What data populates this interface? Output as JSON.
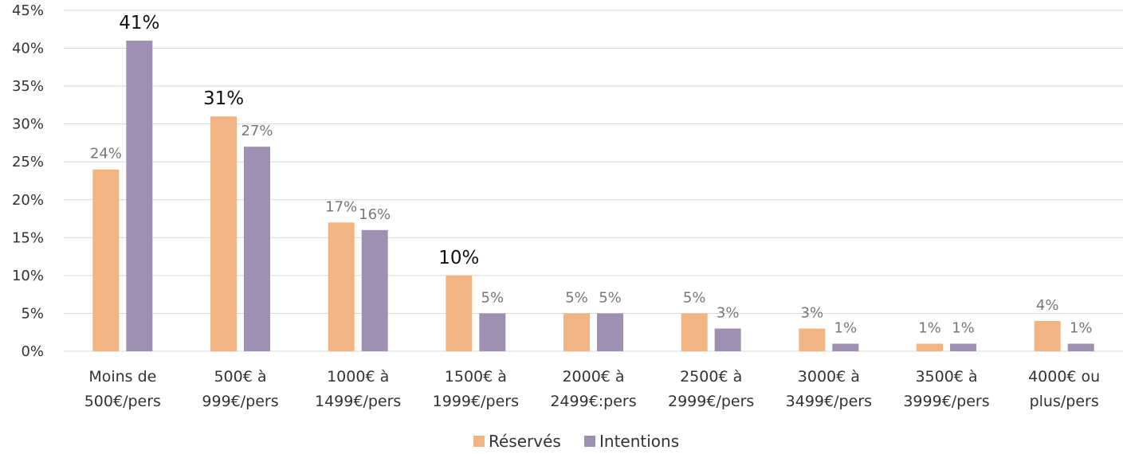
{
  "chart_data": {
    "type": "bar",
    "categories": [
      [
        "Moins de",
        "500€/pers"
      ],
      [
        "500€ à",
        "999€/pers"
      ],
      [
        "1000€ à",
        "1499€/pers"
      ],
      [
        "1500€ à",
        "1999€/pers"
      ],
      [
        "2000€ à",
        "2499€:pers"
      ],
      [
        "2500€ à",
        "2999€/pers"
      ],
      [
        "3000€ à",
        "3499€/pers"
      ],
      [
        "3500€ à",
        "3999€/pers"
      ],
      [
        "4000€ ou",
        "plus/pers"
      ]
    ],
    "series": [
      {
        "name": "Réservés",
        "color": "#f2b482",
        "values": [
          24,
          31,
          17,
          10,
          5,
          5,
          3,
          1,
          4
        ],
        "labels": [
          "24%",
          "31%",
          "17%",
          "10%",
          "5%",
          "5%",
          "3%",
          "1%",
          "4%"
        ],
        "emphasized": [
          false,
          true,
          false,
          true,
          false,
          false,
          false,
          false,
          false
        ]
      },
      {
        "name": "Intentions",
        "color": "#9e90b0",
        "values": [
          41,
          27,
          16,
          5,
          5,
          3,
          1,
          1,
          1
        ],
        "labels": [
          "41%",
          "27%",
          "16%",
          "5%",
          "5%",
          "3%",
          "1%",
          "1%",
          "1%"
        ],
        "emphasized": [
          true,
          false,
          false,
          false,
          false,
          false,
          false,
          false,
          false
        ]
      }
    ],
    "ylim": [
      0,
      45
    ],
    "yticks": [
      "0%",
      "5%",
      "10%",
      "15%",
      "20%",
      "25%",
      "30%",
      "35%",
      "40%",
      "45%"
    ],
    "ytick_values": [
      0,
      5,
      10,
      15,
      20,
      25,
      30,
      35,
      40,
      45
    ],
    "grid": true,
    "legend_position": "bottom",
    "title": "",
    "xlabel": "",
    "ylabel": ""
  }
}
